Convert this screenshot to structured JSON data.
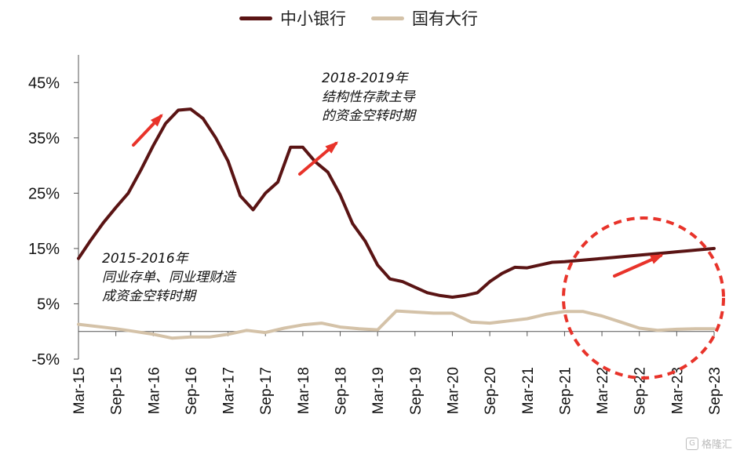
{
  "legend": [
    {
      "name": "中小银行",
      "color": "#5a1414"
    },
    {
      "name": "国有大行",
      "color": "#d4c2a8"
    }
  ],
  "annotations": [
    {
      "id": "a1",
      "text": "2018-2019年\n结构性存款主导\n的资金空转时期"
    },
    {
      "id": "a2",
      "text": "2015-2016年\n同业存单、同业理财造\n成资金空转时期"
    }
  ],
  "watermark": "格隆汇",
  "chart_data": {
    "type": "line",
    "title": "",
    "xlabel": "",
    "ylabel": "",
    "ylim": [
      -5,
      50
    ],
    "y_ticks": [
      "-5%",
      "5%",
      "15%",
      "25%",
      "35%",
      "45%"
    ],
    "categories": [
      "Mar-15",
      "Sep-15",
      "Mar-16",
      "Sep-16",
      "Mar-17",
      "Sep-17",
      "Mar-18",
      "Sep-18",
      "Mar-19",
      "Sep-19",
      "Mar-20",
      "Sep-20",
      "Mar-21",
      "Sep-21",
      "Mar-22",
      "Sep-22",
      "Mar-23",
      "Sep-23"
    ],
    "series": [
      {
        "name": "中小银行",
        "color": "#5a1414",
        "x": [
          0,
          0.33,
          0.67,
          1,
          1.33,
          1.67,
          2,
          2.33,
          2.67,
          3,
          3.33,
          3.67,
          4,
          4.33,
          4.67,
          5,
          5.33,
          5.67,
          6,
          6.33,
          6.67,
          7,
          7.33,
          7.67,
          8,
          8.33,
          8.67,
          9,
          9.33,
          9.67,
          10,
          10.33,
          10.67,
          11,
          11.33,
          11.67,
          12,
          12.33,
          12.67,
          13,
          13.33,
          13.67,
          14,
          14.33,
          14.67,
          15,
          15.33,
          15.67,
          16,
          16.33,
          16.67,
          17
        ],
        "values": [
          13.2,
          16.5,
          19.7,
          22.4,
          25.0,
          29.2,
          33.6,
          37.6,
          40.0,
          40.2,
          38.5,
          35.0,
          30.8,
          24.5,
          22.0,
          25.0,
          27.0,
          33.3,
          33.3,
          30.7,
          28.8,
          24.7,
          19.5,
          16.3,
          12.0,
          9.5,
          9.0,
          8.0,
          7.0,
          6.5,
          6.2,
          6.5,
          7.0,
          9.0,
          10.5,
          11.6,
          11.5,
          12.0,
          12.5,
          12.6,
          12.8,
          13.0,
          13.2,
          13.4,
          13.6,
          13.8,
          14.0,
          14.2,
          14.4,
          14.6,
          14.8,
          15.0
        ]
      },
      {
        "name": "国有大行",
        "color": "#d4c2a8",
        "x": [
          0,
          1,
          1.5,
          2,
          2.5,
          3,
          3.5,
          4,
          4.5,
          5,
          5.5,
          6,
          6.5,
          7,
          7.5,
          8,
          8.5,
          9,
          9.5,
          10,
          10.5,
          11,
          11.5,
          12,
          12.5,
          13,
          13.5,
          14,
          14.5,
          15,
          15.5,
          16,
          16.5,
          17
        ],
        "values": [
          1.3,
          0.5,
          0.0,
          -0.5,
          -1.2,
          -1.0,
          -1.0,
          -0.5,
          0.2,
          -0.2,
          0.6,
          1.2,
          1.5,
          0.8,
          0.5,
          0.3,
          3.7,
          3.5,
          3.3,
          3.3,
          1.7,
          1.5,
          1.9,
          2.3,
          3.1,
          3.6,
          3.6,
          2.8,
          1.7,
          0.6,
          0.2,
          0.4,
          0.5,
          0.5
        ]
      }
    ],
    "arrows": "red",
    "highlight_circle": "red-dashed"
  }
}
